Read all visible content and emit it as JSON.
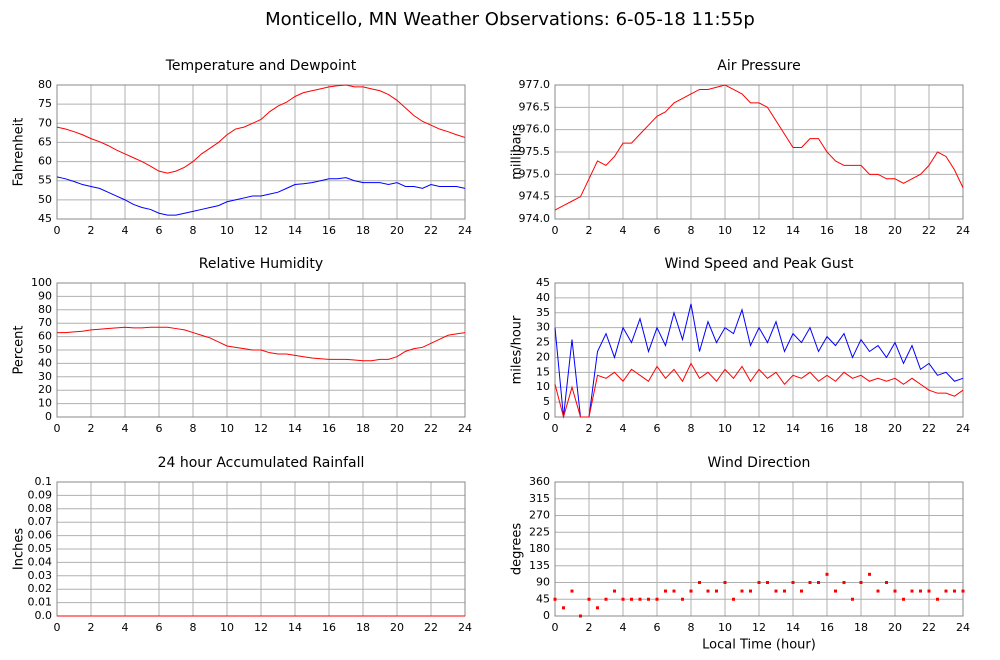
{
  "title": "Monticello, MN Weather Observations: 6-05-18 11:55p",
  "chart_data": [
    {
      "type": "line",
      "title": "Temperature and Dewpoint",
      "y_label": "Fahrenheit",
      "xlim": [
        0,
        24
      ],
      "xticks": [
        0,
        2,
        4,
        6,
        8,
        10,
        12,
        14,
        16,
        18,
        20,
        22,
        24
      ],
      "ylim": [
        45,
        80
      ],
      "yticks": [
        45,
        50,
        55,
        60,
        65,
        70,
        75,
        80
      ],
      "grid": true,
      "x": [
        0,
        0.5,
        1,
        1.5,
        2,
        2.5,
        3,
        3.5,
        4,
        4.5,
        5,
        5.5,
        6,
        6.5,
        7,
        7.5,
        8,
        8.5,
        9,
        9.5,
        10,
        10.5,
        11,
        11.5,
        12,
        12.5,
        13,
        13.5,
        14,
        14.5,
        15,
        15.5,
        16,
        16.5,
        17,
        17.5,
        18,
        18.5,
        19,
        19.5,
        20,
        20.5,
        21,
        21.5,
        22,
        22.5,
        23,
        23.5,
        24
      ],
      "series": [
        {
          "color": "#ff0000",
          "values": [
            69,
            68.5,
            67.8,
            67,
            66,
            65.2,
            64.2,
            63,
            62,
            61,
            60,
            58.8,
            57.5,
            57,
            57.5,
            58.5,
            60,
            62,
            63.5,
            65,
            67,
            68.5,
            69,
            70,
            71,
            73,
            74.5,
            75.5,
            77,
            78,
            78.5,
            79,
            79.5,
            79.8,
            80,
            79.5,
            79.5,
            79,
            78.5,
            77.5,
            76,
            74,
            72,
            70.5,
            69.5,
            68.5,
            67.8,
            67,
            66.3
          ]
        },
        {
          "color": "#0000ff",
          "values": [
            56,
            55.5,
            54.8,
            54,
            53.5,
            53,
            52,
            51,
            50,
            48.8,
            48,
            47.5,
            46.5,
            46,
            46,
            46.5,
            47,
            47.5,
            48,
            48.5,
            49.5,
            50,
            50.5,
            51,
            51,
            51.5,
            52,
            53,
            54,
            54.2,
            54.5,
            55,
            55.5,
            55.5,
            55.8,
            55,
            54.5,
            54.5,
            54.5,
            54,
            54.5,
            53.5,
            53.5,
            53,
            54,
            53.5,
            53.5,
            53.5,
            53
          ]
        }
      ]
    },
    {
      "type": "line",
      "title": "Air Pressure",
      "y_label": "millibars",
      "xlim": [
        0,
        24
      ],
      "xticks": [
        0,
        2,
        4,
        6,
        8,
        10,
        12,
        14,
        16,
        18,
        20,
        22,
        24
      ],
      "ylim": [
        974,
        977
      ],
      "yticks": [
        {
          "value": 974,
          "label": "974.0"
        },
        974.5,
        {
          "value": 975,
          "label": "975.0"
        },
        975.5,
        {
          "value": 976,
          "label": "976.0"
        },
        976.5,
        {
          "value": 977,
          "label": "977.0"
        }
      ],
      "grid": true,
      "x": [
        0,
        0.5,
        1,
        1.5,
        2,
        2.5,
        3,
        3.5,
        4,
        4.5,
        5,
        5.5,
        6,
        6.5,
        7,
        7.5,
        8,
        8.5,
        9,
        9.5,
        10,
        10.5,
        11,
        11.5,
        12,
        12.5,
        13,
        13.5,
        14,
        14.5,
        15,
        15.5,
        16,
        16.5,
        17,
        17.5,
        18,
        18.5,
        19,
        19.5,
        20,
        20.5,
        21,
        21.5,
        22,
        22.5,
        23,
        23.5,
        24
      ],
      "series": [
        {
          "color": "#ff0000",
          "values": [
            974.2,
            974.3,
            974.4,
            974.5,
            974.9,
            975.3,
            975.2,
            975.4,
            975.7,
            975.7,
            975.9,
            976.1,
            976.3,
            976.4,
            976.6,
            976.7,
            976.8,
            976.9,
            976.9,
            976.95,
            977,
            976.9,
            976.8,
            976.6,
            976.6,
            976.5,
            976.2,
            975.9,
            975.6,
            975.6,
            975.8,
            975.8,
            975.5,
            975.3,
            975.2,
            975.2,
            975.2,
            975,
            975,
            974.9,
            974.9,
            974.8,
            974.9,
            975,
            975.2,
            975.5,
            975.4,
            975.1,
            974.7
          ]
        }
      ]
    },
    {
      "type": "line",
      "title": "Relative Humidity",
      "y_label": "Percent",
      "xlim": [
        0,
        24
      ],
      "xticks": [
        0,
        2,
        4,
        6,
        8,
        10,
        12,
        14,
        16,
        18,
        20,
        22,
        24
      ],
      "ylim": [
        0,
        100
      ],
      "yticks": [
        0,
        10,
        20,
        30,
        40,
        50,
        60,
        70,
        80,
        90,
        100
      ],
      "grid": true,
      "x": [
        0,
        0.5,
        1,
        1.5,
        2,
        2.5,
        3,
        3.5,
        4,
        4.5,
        5,
        5.5,
        6,
        6.5,
        7,
        7.5,
        8,
        8.5,
        9,
        9.5,
        10,
        10.5,
        11,
        11.5,
        12,
        12.5,
        13,
        13.5,
        14,
        14.5,
        15,
        15.5,
        16,
        16.5,
        17,
        17.5,
        18,
        18.5,
        19,
        19.5,
        20,
        20.5,
        21,
        21.5,
        22,
        22.5,
        23,
        23.5,
        24
      ],
      "series": [
        {
          "color": "#ff0000",
          "values": [
            63,
            63,
            63.5,
            64,
            65,
            65.5,
            66,
            66.5,
            67,
            66.5,
            66.5,
            67,
            67,
            67,
            66,
            65,
            63,
            61,
            59,
            56,
            53,
            52,
            51,
            50,
            50,
            48,
            47,
            47,
            46,
            45,
            44,
            43.5,
            43,
            43,
            43,
            42.5,
            42,
            42,
            43,
            43,
            45,
            49,
            51,
            52,
            55,
            58,
            61,
            62,
            63
          ]
        }
      ]
    },
    {
      "type": "line",
      "title": "Wind Speed and Peak Gust",
      "y_label": "miles/hour",
      "xlim": [
        0,
        24
      ],
      "xticks": [
        0,
        2,
        4,
        6,
        8,
        10,
        12,
        14,
        16,
        18,
        20,
        22,
        24
      ],
      "ylim": [
        0,
        45
      ],
      "yticks": [
        0,
        5,
        10,
        15,
        20,
        25,
        30,
        35,
        40,
        45
      ],
      "grid": true,
      "x": [
        0,
        0.5,
        1,
        1.5,
        2,
        2.5,
        3,
        3.5,
        4,
        4.5,
        5,
        5.5,
        6,
        6.5,
        7,
        7.5,
        8,
        8.5,
        9,
        9.5,
        10,
        10.5,
        11,
        11.5,
        12,
        12.5,
        13,
        13.5,
        14,
        14.5,
        15,
        15.5,
        16,
        16.5,
        17,
        17.5,
        18,
        18.5,
        19,
        19.5,
        20,
        20.5,
        21,
        21.5,
        22,
        22.5,
        23,
        23.5,
        24
      ],
      "series": [
        {
          "color": "#0000ff",
          "values": [
            30,
            0,
            26,
            0,
            0,
            22,
            28,
            20,
            30,
            25,
            33,
            22,
            30,
            24,
            35,
            26,
            38,
            22,
            32,
            25,
            30,
            28,
            36,
            24,
            30,
            25,
            32,
            22,
            28,
            25,
            30,
            22,
            27,
            24,
            28,
            20,
            26,
            22,
            24,
            20,
            25,
            18,
            24,
            16,
            18,
            14,
            15,
            12,
            13
          ]
        },
        {
          "color": "#ff0000",
          "values": [
            11,
            0,
            10,
            0,
            0,
            14,
            13,
            15,
            12,
            16,
            14,
            12,
            17,
            13,
            16,
            12,
            18,
            13,
            15,
            12,
            16,
            13,
            17,
            12,
            16,
            13,
            15,
            11,
            14,
            13,
            15,
            12,
            14,
            12,
            15,
            13,
            14,
            12,
            13,
            12,
            13,
            11,
            13,
            11,
            9,
            8,
            8,
            7,
            9
          ]
        }
      ]
    },
    {
      "type": "line",
      "title": "24 hour Accumulated Rainfall",
      "y_label": "Inches",
      "xlim": [
        0,
        24
      ],
      "xticks": [
        0,
        2,
        4,
        6,
        8,
        10,
        12,
        14,
        16,
        18,
        20,
        22,
        24
      ],
      "ylim": [
        0,
        0.1
      ],
      "yticks": [
        {
          "value": 0,
          "label": "0.0"
        },
        0.01,
        0.02,
        0.03,
        0.04,
        0.05,
        0.06,
        0.07,
        0.08,
        0.09,
        0.1
      ],
      "grid": true,
      "x": [
        0,
        24
      ],
      "series": [
        {
          "color": "#ff0000",
          "values": [
            0,
            0
          ]
        }
      ]
    },
    {
      "type": "scatter",
      "title": "Wind Direction",
      "y_label": "degrees",
      "x_label": "Local Time (hour)",
      "xlim": [
        0,
        24
      ],
      "xticks": [
        0,
        2,
        4,
        6,
        8,
        10,
        12,
        14,
        16,
        18,
        20,
        22,
        24
      ],
      "ylim": [
        0,
        360
      ],
      "yticks": [
        0,
        45,
        90,
        135,
        180,
        225,
        270,
        315,
        360
      ],
      "grid": true,
      "x": [
        0,
        0.5,
        1,
        1.5,
        2,
        2.5,
        3,
        3.5,
        4,
        4.5,
        5,
        5.5,
        6,
        6.5,
        7,
        7.5,
        8,
        8.5,
        9,
        9.5,
        10,
        10.5,
        11,
        11.5,
        12,
        12.5,
        13,
        13.5,
        14,
        14.5,
        15,
        15.5,
        16,
        16.5,
        17,
        17.5,
        18,
        18.5,
        19,
        19.5,
        20,
        20.5,
        21,
        21.5,
        22,
        22.5,
        23,
        23.5,
        24
      ],
      "series": [
        {
          "color": "#ff0000",
          "values": [
            45,
            22,
            67,
            0,
            45,
            22,
            45,
            67,
            45,
            45,
            45,
            45,
            45,
            67,
            67,
            45,
            67,
            90,
            67,
            67,
            90,
            45,
            67,
            67,
            90,
            90,
            67,
            67,
            90,
            67,
            90,
            90,
            112,
            67,
            90,
            45,
            90,
            112,
            67,
            90,
            67,
            45,
            67,
            67,
            67,
            45,
            67,
            67,
            67
          ]
        }
      ]
    }
  ]
}
